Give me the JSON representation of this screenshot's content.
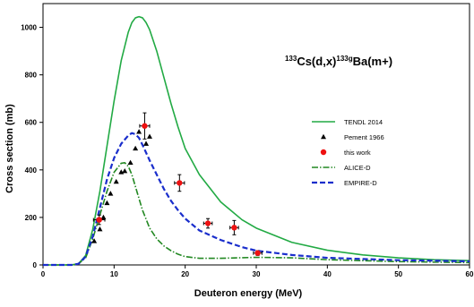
{
  "chart_data": {
    "type": "line",
    "title_parts": [
      {
        "text": "133",
        "sup": true
      },
      {
        "text": "Cs(d,x)",
        "sup": false
      },
      {
        "text": "133g",
        "sup": true
      },
      {
        "text": "Ba(m+)",
        "sup": false
      }
    ],
    "xlabel": "Deuteron energy (MeV)",
    "ylabel": "Cross section (mb)",
    "xlim": [
      0,
      60
    ],
    "ylim": [
      0,
      1100
    ],
    "xticks": [
      0,
      10,
      20,
      30,
      40,
      50,
      60
    ],
    "yticks": [
      0,
      200,
      400,
      600,
      800,
      1000
    ],
    "grid": false,
    "legend_position": "right-middle",
    "series": [
      {
        "name": "TENDL 2014",
        "kind": "line",
        "color": "#22aa44",
        "dash": "solid",
        "x": [
          0,
          4,
          5,
          6,
          7,
          8,
          9,
          10,
          11,
          12,
          12.5,
          13,
          13.5,
          14,
          14.5,
          15,
          16,
          17,
          18,
          19,
          20,
          22,
          25,
          28,
          30,
          35,
          40,
          45,
          50,
          55,
          60
        ],
        "y": [
          0,
          0,
          5,
          40,
          150,
          310,
          500,
          690,
          860,
          980,
          1020,
          1040,
          1045,
          1040,
          1020,
          990,
          900,
          790,
          680,
          580,
          490,
          380,
          265,
          190,
          155,
          95,
          62,
          42,
          30,
          22,
          18
        ]
      },
      {
        "name": "Pement 1966",
        "kind": "marker",
        "marker": "triangle",
        "color": "#000000",
        "x": [
          7.2,
          8.0,
          8.5,
          9.0,
          9.5,
          10.3,
          11.0,
          11.5,
          12.3,
          13.0,
          13.5,
          14.5,
          15.0
        ],
        "y": [
          100,
          150,
          200,
          260,
          300,
          350,
          390,
          395,
          430,
          490,
          560,
          510,
          540
        ]
      },
      {
        "name": "this work",
        "kind": "errorbar",
        "marker": "circle",
        "color": "#ee1111",
        "x": [
          7.9,
          14.3,
          19.2,
          23.2,
          26.9,
          30.2
        ],
        "y": [
          190,
          585,
          345,
          175,
          157,
          50
        ],
        "xerr": [
          0.8,
          0.7,
          0.7,
          0.6,
          0.6,
          0.6
        ],
        "yerr": [
          20,
          55,
          35,
          20,
          30,
          10
        ]
      },
      {
        "name": "ALICE-D",
        "kind": "line",
        "color": "#228822",
        "dash": "dashdot",
        "x": [
          0,
          4,
          5,
          6,
          7,
          8,
          9,
          10,
          11,
          11.5,
          12,
          12.5,
          13,
          14,
          15,
          16,
          17,
          18,
          19,
          20,
          22,
          25,
          30,
          35,
          40,
          45,
          50,
          55,
          60
        ],
        "y": [
          0,
          0,
          5,
          30,
          110,
          210,
          310,
          390,
          428,
          430,
          415,
          380,
          330,
          230,
          155,
          110,
          80,
          60,
          45,
          35,
          28,
          28,
          32,
          30,
          22,
          18,
          14,
          12,
          10
        ]
      },
      {
        "name": "EMPIRE-D",
        "kind": "line",
        "color": "#1a2ecc",
        "dash": "dash",
        "x": [
          0,
          4,
          5,
          6,
          7,
          8,
          9,
          10,
          11,
          12,
          12.5,
          13,
          13.5,
          14,
          15,
          16,
          17,
          18,
          19,
          20,
          22,
          25,
          28,
          30,
          35,
          40,
          45,
          50,
          55,
          60
        ],
        "y": [
          0,
          0,
          5,
          35,
          120,
          240,
          360,
          450,
          510,
          545,
          555,
          550,
          535,
          505,
          440,
          380,
          320,
          270,
          230,
          195,
          145,
          105,
          75,
          60,
          42,
          30,
          25,
          20,
          18,
          15
        ]
      }
    ]
  }
}
